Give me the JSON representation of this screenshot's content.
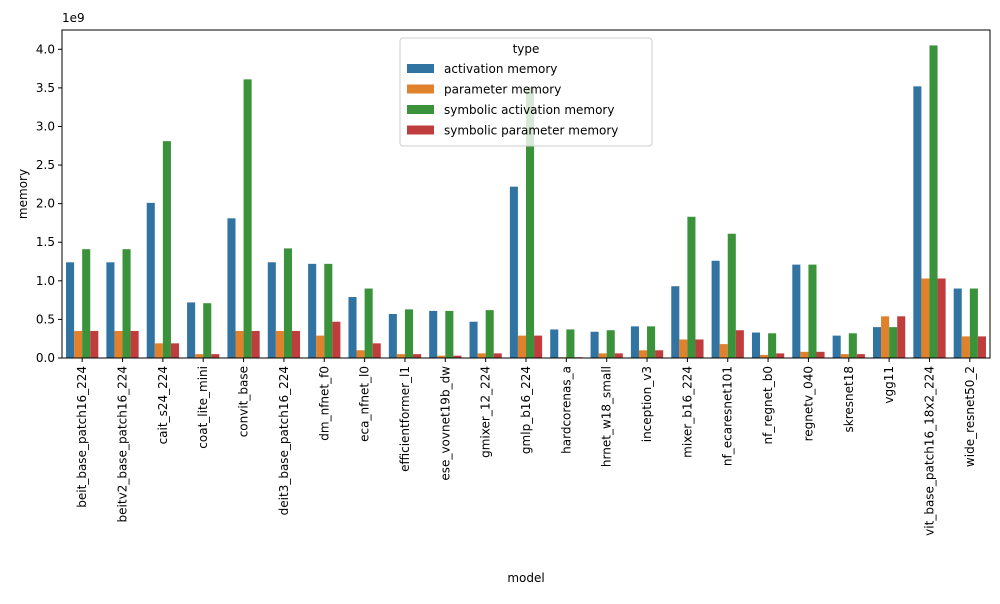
{
  "chart_data": {
    "type": "bar",
    "title": "",
    "xlabel": "model",
    "ylabel": "memory",
    "y_multiplier_label": "1e9",
    "ylim": [
      0,
      4.25
    ],
    "yticks": [
      0.0,
      0.5,
      1.0,
      1.5,
      2.0,
      2.5,
      3.0,
      3.5,
      4.0
    ],
    "ytick_labels": [
      "0.0",
      "0.5",
      "1.0",
      "1.5",
      "2.0",
      "2.5",
      "3.0",
      "3.5",
      "4.0"
    ],
    "grid": false,
    "legend": {
      "title": "type",
      "placement": "top-center"
    },
    "categories": [
      "beit_base_patch16_224",
      "beitv2_base_patch16_224",
      "cait_s24_224",
      "coat_lite_mini",
      "convit_base",
      "deit3_base_patch16_224",
      "dm_nfnet_f0",
      "eca_nfnet_l0",
      "efficientformer_l1",
      "ese_vovnet19b_dw",
      "gmixer_12_224",
      "gmlp_b16_224",
      "hardcorenas_a",
      "hrnet_w18_small",
      "inception_v3",
      "mixer_b16_224",
      "nf_ecaresnet101",
      "nf_regnet_b0",
      "regnetv_040",
      "skresnet18",
      "vgg11",
      "vit_base_patch16_18x2_224",
      "wide_resnet50_2"
    ],
    "series": [
      {
        "name": "activation memory",
        "color": "#3274a1",
        "values": [
          1.24,
          1.24,
          2.01,
          0.72,
          1.81,
          1.24,
          1.22,
          0.79,
          0.57,
          0.61,
          0.47,
          2.22,
          0.37,
          0.34,
          0.41,
          0.93,
          1.26,
          0.33,
          1.21,
          0.29,
          0.4,
          3.52,
          0.9
        ]
      },
      {
        "name": "parameter memory",
        "color": "#e1812c",
        "values": [
          0.35,
          0.35,
          0.19,
          0.05,
          0.35,
          0.35,
          0.29,
          0.1,
          0.05,
          0.03,
          0.06,
          0.29,
          0.01,
          0.06,
          0.1,
          0.24,
          0.18,
          0.04,
          0.08,
          0.05,
          0.54,
          1.03,
          0.28
        ]
      },
      {
        "name": "symbolic activation memory",
        "color": "#3a923a",
        "values": [
          1.41,
          1.41,
          2.81,
          0.71,
          3.61,
          1.42,
          1.22,
          0.9,
          0.63,
          0.61,
          0.62,
          3.51,
          0.37,
          0.36,
          0.41,
          1.83,
          1.61,
          0.32,
          1.21,
          0.32,
          0.4,
          4.05,
          0.9
        ]
      },
      {
        "name": "symbolic parameter memory",
        "color": "#c03d3e",
        "values": [
          0.35,
          0.35,
          0.19,
          0.05,
          0.35,
          0.35,
          0.47,
          0.19,
          0.05,
          0.03,
          0.06,
          0.29,
          0.01,
          0.06,
          0.1,
          0.24,
          0.36,
          0.06,
          0.08,
          0.05,
          0.54,
          1.03,
          0.28
        ]
      }
    ]
  }
}
